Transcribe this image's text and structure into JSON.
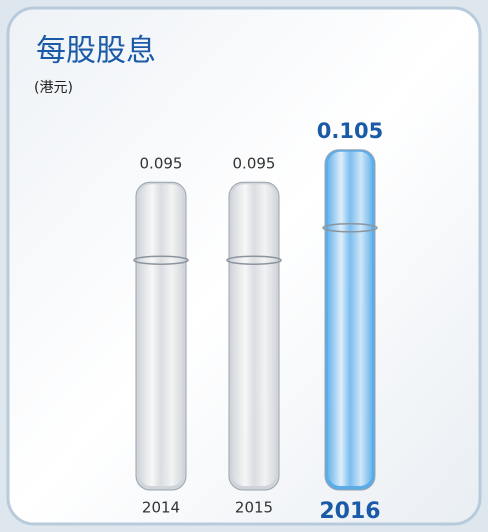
{
  "chart_data": {
    "type": "bar",
    "title": "每股股息",
    "subtitle": "(港元)",
    "categories": [
      "2014",
      "2015",
      "2016"
    ],
    "values": [
      0.095,
      0.095,
      0.105
    ],
    "colors": [
      "#c9ced4",
      "#c9ced4",
      "#3f9fe6"
    ]
  }
}
